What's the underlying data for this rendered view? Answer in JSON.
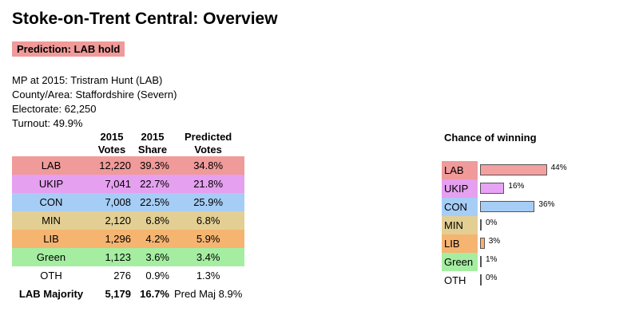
{
  "header": {
    "title": "Stoke-on-Trent Central: Overview",
    "prediction": "Prediction: LAB hold"
  },
  "info": {
    "mp": "MP at 2015: Tristram Hunt  (LAB)",
    "county": "County/Area: Staffordshire (Severn)",
    "electorate": "Electorate: 62,250",
    "turnout": "Turnout: 49.9%"
  },
  "table": {
    "headers": {
      "votes": "2015 Votes",
      "share": "2015 Share",
      "predicted": "Predicted Votes"
    },
    "rows": [
      {
        "party": "LAB",
        "votes": "12,220",
        "share": "39.3%",
        "predicted": "34.8%",
        "color": "#f09a9a"
      },
      {
        "party": "UKIP",
        "votes": "7,041",
        "share": "22.7%",
        "predicted": "21.8%",
        "color": "#e5a0f0"
      },
      {
        "party": "CON",
        "votes": "7,008",
        "share": "22.5%",
        "predicted": "25.9%",
        "color": "#a6cdf5"
      },
      {
        "party": "MIN",
        "votes": "2,120",
        "share": "6.8%",
        "predicted": "6.8%",
        "color": "#e3cf94"
      },
      {
        "party": "LIB",
        "votes": "1,296",
        "share": "4.2%",
        "predicted": "5.9%",
        "color": "#f5b470"
      },
      {
        "party": "Green",
        "votes": "1,123",
        "share": "3.6%",
        "predicted": "3.4%",
        "color": "#a5eea1"
      },
      {
        "party": "OTH",
        "votes": "276",
        "share": "0.9%",
        "predicted": "1.3%",
        "color": "#ffffff"
      }
    ],
    "majority": {
      "label": "LAB Majority",
      "votes": "5,179",
      "share": "16.7%",
      "predicted": "Pred Maj 8.9%"
    }
  },
  "chance": {
    "title": "Chance of winning",
    "rows": [
      {
        "party": "LAB",
        "value": 44,
        "label": "44%",
        "color": "#f09a9a",
        "bar": "#f4a0a0"
      },
      {
        "party": "UKIP",
        "value": 16,
        "label": "16%",
        "color": "#e5a0f0",
        "bar": "#e8a4f4"
      },
      {
        "party": "CON",
        "value": 36,
        "label": "36%",
        "color": "#a6cdf5",
        "bar": "#a6cdf5"
      },
      {
        "party": "MIN",
        "value": 0,
        "label": "0%",
        "color": "#e3cf94",
        "bar": "#ffffff"
      },
      {
        "party": "LIB",
        "value": 3,
        "label": "3%",
        "color": "#f5b470",
        "bar": "#f5b470"
      },
      {
        "party": "Green",
        "value": 1,
        "label": "1%",
        "color": "#a5eea1",
        "bar": "#a5eea1"
      },
      {
        "party": "OTH",
        "value": 0,
        "label": "0%",
        "color": "#ffffff",
        "bar": "#ffffff"
      }
    ]
  }
}
